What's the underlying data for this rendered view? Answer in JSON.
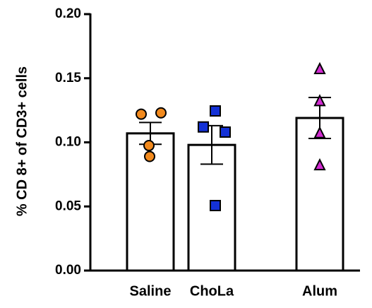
{
  "chart_data": {
    "type": "bar",
    "ylabel": "% CD 8+ of CD3+ cells",
    "categories": [
      "Saline",
      "ChoLa",
      "Alum"
    ],
    "values": [
      0.107,
      0.098,
      0.119
    ],
    "errors": [
      0.0085,
      0.015,
      0.016
    ],
    "points": [
      [
        0.122,
        0.123,
        0.0975,
        0.089
      ],
      [
        0.1245,
        0.112,
        0.108,
        0.0507
      ],
      [
        0.157,
        0.132,
        0.107,
        0.082
      ]
    ],
    "point_colors": [
      "#f28a1e",
      "#1431d6",
      "#d12bd1"
    ],
    "point_markers": [
      "circle",
      "square",
      "triangle"
    ],
    "bar_color": "#ffffff",
    "ylim": [
      0,
      0.2
    ],
    "yticks": [
      {
        "value": 0,
        "label": "0.00"
      },
      {
        "value": 0.05,
        "label": "0.05"
      },
      {
        "value": 0.1,
        "label": "0.10"
      },
      {
        "value": 0.15,
        "label": "0.15"
      },
      {
        "value": 0.2,
        "label": "0.20"
      }
    ]
  }
}
